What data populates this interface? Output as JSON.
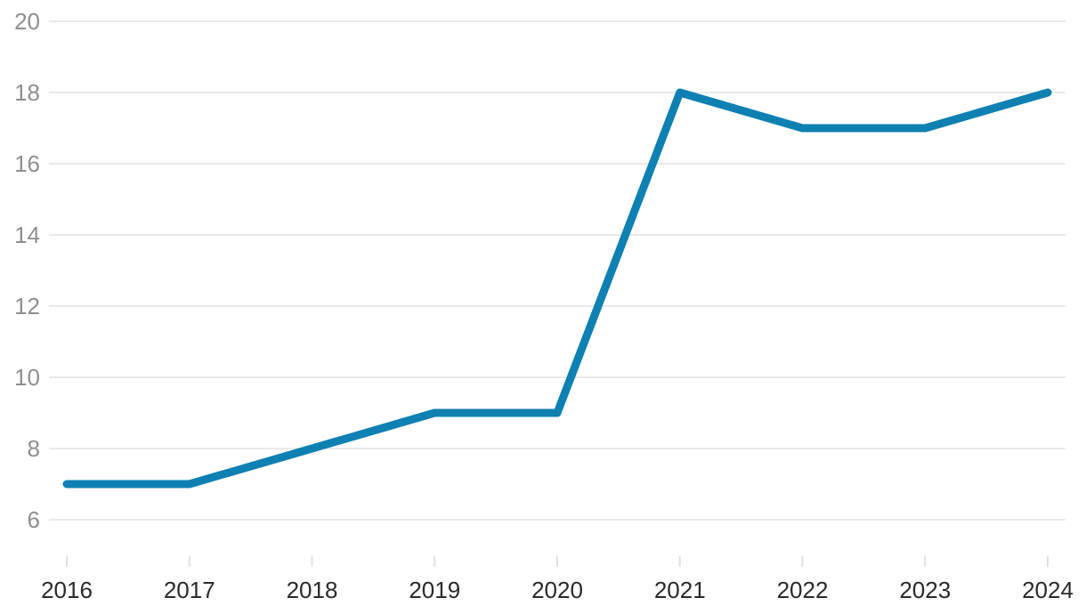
{
  "chart_data": {
    "type": "line",
    "title": "",
    "xlabel": "",
    "ylabel": "",
    "x": [
      "2016",
      "2017",
      "2018",
      "2019",
      "2020",
      "2021",
      "2022",
      "2023",
      "2024"
    ],
    "series": [
      {
        "name": "value",
        "values": [
          7,
          7,
          8,
          9,
          9,
          18,
          17,
          17,
          18
        ]
      }
    ],
    "ylim": [
      6,
      20
    ],
    "yticks": [
      6,
      8,
      10,
      12,
      14,
      16,
      18,
      20
    ],
    "grid": true,
    "legend_position": "none",
    "colors": {
      "line": "#0e80b2",
      "gridline": "#e9e9e9",
      "x_tick": "#e0e0e0",
      "y_label": "#8f8f8f",
      "x_label": "#2a2a2a",
      "background": "#ffffff"
    }
  }
}
